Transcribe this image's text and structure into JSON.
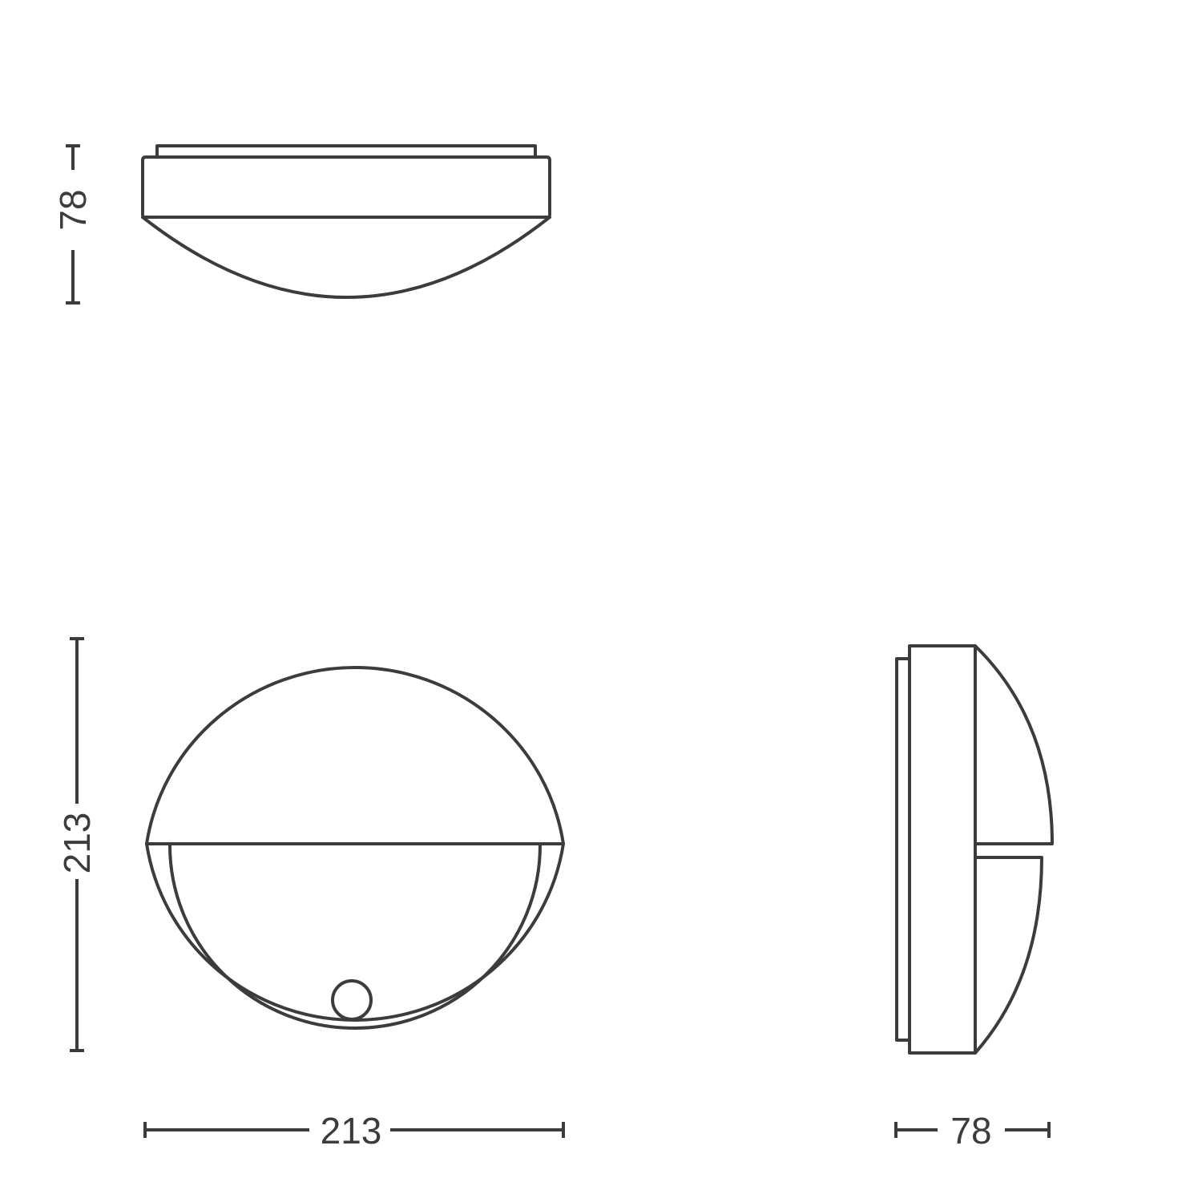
{
  "dimensions": {
    "top_view_height": "78",
    "front_view_height": "213",
    "front_view_width": "213",
    "side_view_depth": "78"
  },
  "colors": {
    "line": "#3c3c3c",
    "background": "#ffffff"
  }
}
